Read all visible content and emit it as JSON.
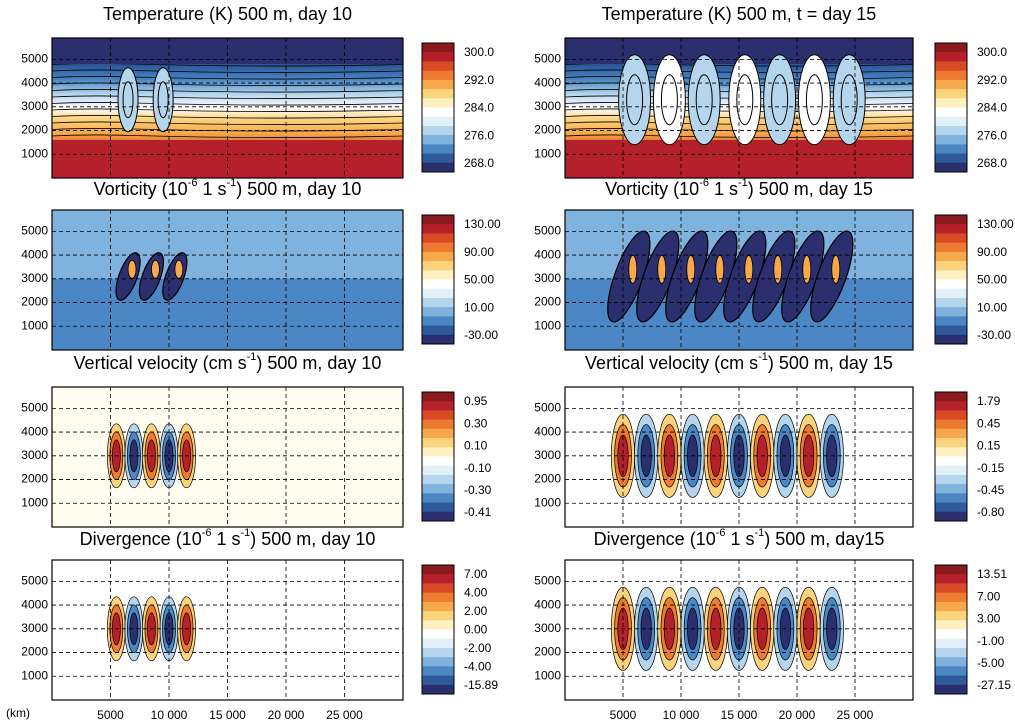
{
  "x_axis": {
    "unit_label": "(km)",
    "xlim": [
      0,
      30000
    ],
    "xticks": [
      5000,
      {
        "value": 10000,
        "label": "10 000"
      },
      {
        "value": 15000,
        "label": "15 000"
      },
      {
        "value": 20000,
        "label": "20 000"
      },
      {
        "value": 25000,
        "label": "25 000"
      }
    ]
  },
  "y_axis": {
    "ylim": [
      0,
      5900
    ],
    "yticks": [
      1000,
      2000,
      3000,
      4000,
      5000
    ]
  },
  "panels": [
    {
      "title": [
        "Temperature (K) 500 m, day 10"
      ],
      "colorbar_labels": [
        "300.0",
        "292.0",
        "284.0",
        "276.0",
        "268.0"
      ]
    },
    {
      "title": [
        "Temperature (K) 500 m, t = day 15"
      ],
      "colorbar_labels": [
        "300.0",
        "292.0",
        "284.0",
        "276.0",
        "268.0"
      ]
    },
    {
      "title": [
        "Vorticity (10",
        "-6",
        " 1 s",
        "-1",
        ") 500 m, day 10"
      ],
      "colorbar_labels": [
        "130.00",
        "90.00",
        "50.00",
        "10.00",
        "-30.00"
      ]
    },
    {
      "title": [
        "Vorticity (10",
        "-6",
        " 1 s",
        "-1",
        ") 500 m,  day 15"
      ],
      "colorbar_labels": [
        "130.00",
        "90.00",
        "50.00",
        "10.00",
        "-30.00"
      ]
    },
    {
      "title": [
        "Vertical velocity (cm s",
        "-1",
        ") 500 m, day 10"
      ],
      "colorbar_labels": [
        "0.95",
        "0.30",
        "0.10",
        "-0.10",
        "-0.30",
        "-0.41"
      ]
    },
    {
      "title": [
        "Vertical  velocity (cm s",
        "-1",
        ") 500 m, day 15"
      ],
      "colorbar_labels": [
        "1.79",
        "0.45",
        "0.15",
        "-0.15",
        "-0.45",
        "-0.80"
      ]
    },
    {
      "title": [
        "Divergence (10",
        "-6",
        " 1 s",
        "-1",
        ") 500 m, day 10"
      ],
      "colorbar_labels": [
        "7.00",
        "4.00",
        "2.00",
        "0.00",
        "-2.00",
        "-4.00",
        "-15.89"
      ]
    },
    {
      "title": [
        "Divergence (10",
        "-6",
        " 1 s",
        "-1",
        ") 500 m,  day15"
      ],
      "colorbar_labels": [
        "13.51",
        "7.00",
        "3.00",
        "-1.00",
        "-5.00",
        "-27.15"
      ]
    }
  ]
}
